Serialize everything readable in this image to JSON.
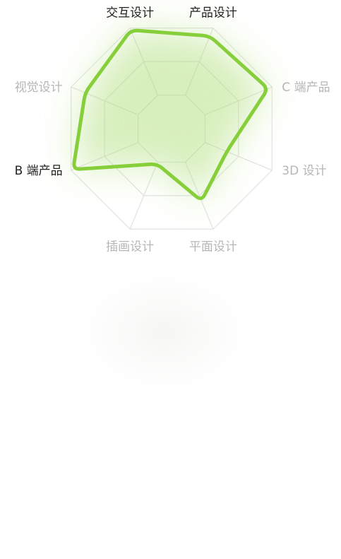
{
  "chart_data": {
    "type": "radar",
    "axes": [
      {
        "label": "交互设计",
        "highlighted": true
      },
      {
        "label": "产品设计",
        "highlighted": true
      },
      {
        "label": "C 端产品",
        "highlighted": false
      },
      {
        "label": "3D 设计",
        "highlighted": false
      },
      {
        "label": "平面设计",
        "highlighted": false
      },
      {
        "label": "插画设计",
        "highlighted": false
      },
      {
        "label": "B 端产品",
        "highlighted": true
      },
      {
        "label": "视觉设计",
        "highlighted": false
      }
    ],
    "values": [
      0.98,
      0.92,
      0.96,
      0.55,
      0.72,
      0.35,
      0.98,
      0.86
    ],
    "max": 1,
    "grid_levels": 3,
    "grid": true,
    "legend": "none",
    "colors": {
      "series": "#86cf3a",
      "glow": "#a6db6a",
      "grid": "#e2e2e2",
      "label_dark": "#222222",
      "label_light": "#b6b6b6"
    }
  }
}
